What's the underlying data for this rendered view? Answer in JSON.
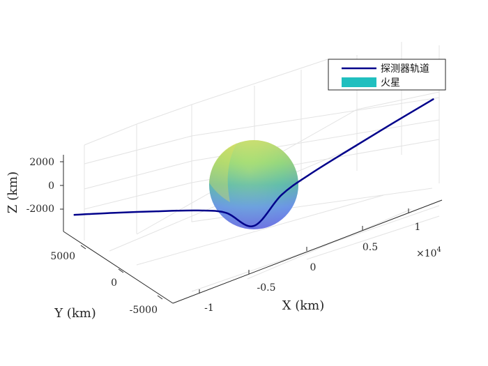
{
  "chart_data": {
    "type": "line",
    "view": "3d",
    "xlabel": "X (km)",
    "ylabel": "Y (km)",
    "zlabel": "Z (km)",
    "x_exponent_label": "×10",
    "x_exponent_power": "4",
    "x_ticks": [
      {
        "value": -10000,
        "label": "-1"
      },
      {
        "value": -5000,
        "label": "-0.5"
      },
      {
        "value": 0,
        "label": "0"
      },
      {
        "value": 5000,
        "label": "0.5"
      },
      {
        "value": 10000,
        "label": "1"
      }
    ],
    "y_ticks": [
      {
        "value": 5000,
        "label": "5000"
      },
      {
        "value": 0,
        "label": "0"
      },
      {
        "value": -5000,
        "label": "-5000"
      }
    ],
    "z_ticks": [
      {
        "value": 2000,
        "label": "2000"
      },
      {
        "value": 0,
        "label": "0"
      },
      {
        "value": -2000,
        "label": "-2000"
      }
    ],
    "grid": true,
    "legend_position": "top-right",
    "series": [
      {
        "name": "探测器轨道",
        "kind": "line",
        "color": "#00008b",
        "points": [
          {
            "x": -13000,
            "y": 0,
            "z": 2400
          },
          {
            "x": -10000,
            "y": 0,
            "z": 1450
          },
          {
            "x": -7000,
            "y": 0,
            "z": 450
          },
          {
            "x": -4000,
            "y": 0,
            "z": -600
          },
          {
            "x": -2000,
            "y": 0,
            "z": -1550
          },
          {
            "x": 0,
            "y": 0,
            "z": -3400
          },
          {
            "x": 2000,
            "y": 0,
            "z": -1550
          },
          {
            "x": 4000,
            "y": 0,
            "z": -600
          },
          {
            "x": 7000,
            "y": 0,
            "z": 450
          },
          {
            "x": 10000,
            "y": 0,
            "z": 1450
          },
          {
            "x": 13000,
            "y": 0,
            "z": 2400
          }
        ]
      },
      {
        "name": "火星",
        "kind": "surface",
        "color": "#20bfbf",
        "center": {
          "x": 0,
          "y": 0,
          "z": 0
        },
        "radius_km": 3390
      }
    ]
  }
}
